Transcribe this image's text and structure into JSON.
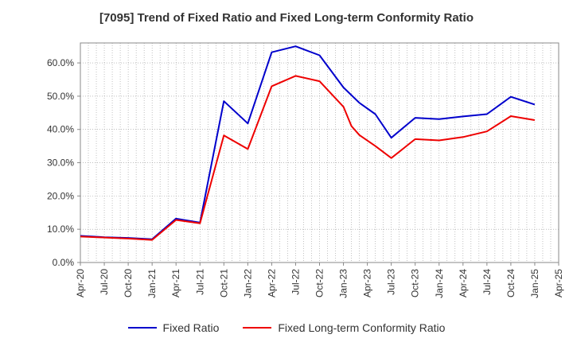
{
  "chart_data": {
    "type": "line",
    "title": "[7095]  Trend of Fixed Ratio and Fixed Long-term Conformity Ratio",
    "xlabel": "",
    "ylabel": "",
    "ylim": [
      0,
      66
    ],
    "yticks": [
      0,
      10,
      20,
      30,
      40,
      50,
      60
    ],
    "ytick_labels": [
      "0.0%",
      "10.0%",
      "20.0%",
      "30.0%",
      "40.0%",
      "50.0%",
      "60.0%"
    ],
    "xticks": [
      "Apr-20",
      "Jul-20",
      "Oct-20",
      "Jan-21",
      "Apr-21",
      "Jul-21",
      "Oct-21",
      "Jan-22",
      "Apr-22",
      "Jul-22",
      "Oct-22",
      "Jan-23",
      "Apr-23",
      "Jul-23",
      "Oct-23",
      "Jan-24",
      "Apr-24",
      "Jul-24",
      "Oct-24",
      "Jan-25",
      "Apr-25"
    ],
    "grid": true,
    "legend_position": "bottom-center",
    "series": [
      {
        "name": "Fixed Ratio",
        "color": "#0000cc",
        "x": [
          "Apr-20",
          "Jul-20",
          "Oct-20",
          "Jan-21",
          "Apr-21",
          "Jul-21",
          "Oct-21",
          "Jan-22",
          "Apr-22",
          "Jul-22",
          "Oct-22",
          "Jan-23",
          "Mar-23",
          "May-23",
          "Jul-23",
          "Oct-23",
          "Jan-24",
          "Apr-24",
          "Jul-24",
          "Oct-24",
          "Jan-25"
        ],
        "values": [
          8.0,
          7.6,
          7.4,
          7.0,
          13.2,
          12.0,
          48.5,
          41.8,
          63.2,
          65.0,
          62.3,
          52.6,
          48.0,
          44.6,
          37.5,
          43.5,
          43.1,
          43.9,
          44.6,
          49.8,
          47.5
        ]
      },
      {
        "name": "Fixed Long-term Conformity Ratio",
        "color": "#ee0000",
        "x": [
          "Apr-20",
          "Jul-20",
          "Oct-20",
          "Jan-21",
          "Apr-21",
          "Jul-21",
          "Oct-21",
          "Jan-22",
          "Apr-22",
          "Jul-22",
          "Oct-22",
          "Jan-23",
          "Feb-23",
          "Mar-23",
          "May-23",
          "Jul-23",
          "Oct-23",
          "Jan-24",
          "Apr-24",
          "Jul-24",
          "Oct-24",
          "Jan-25"
        ],
        "values": [
          7.8,
          7.5,
          7.2,
          6.8,
          12.8,
          11.8,
          38.2,
          34.1,
          53.0,
          56.1,
          54.5,
          46.8,
          41.0,
          38.3,
          35.0,
          31.4,
          37.1,
          36.7,
          37.7,
          39.4,
          44.0,
          42.8
        ]
      }
    ]
  }
}
